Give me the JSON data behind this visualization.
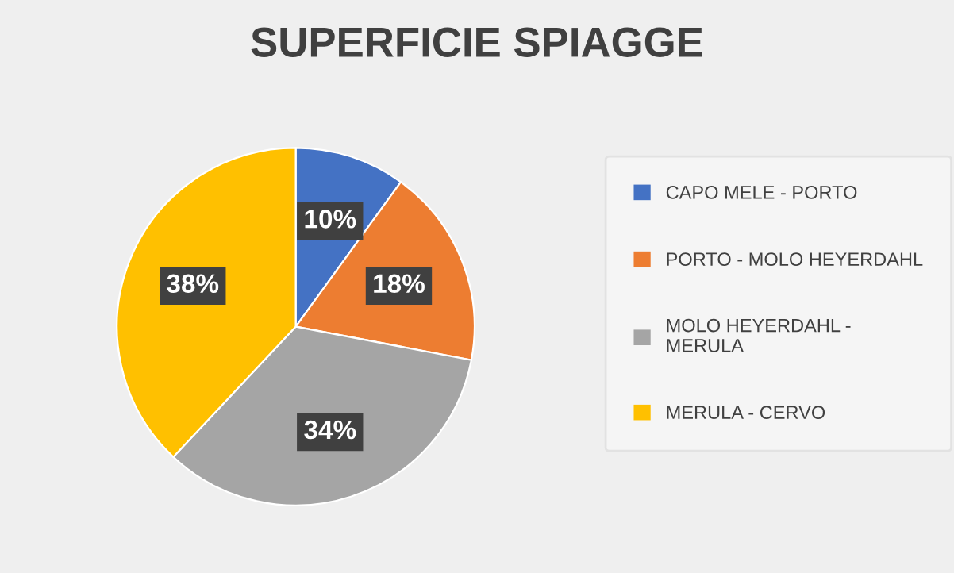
{
  "chart_data": {
    "type": "pie",
    "title": "SUPERFICIE SPIAGGE",
    "categories": [
      "CAPO MELE - PORTO",
      "PORTO - MOLO HEYERDAHL",
      "MOLO HEYERDAHL - MERULA",
      "MERULA - CERVO"
    ],
    "values": [
      10,
      18,
      34,
      38
    ],
    "colors": [
      "#4472c4",
      "#ed7d31",
      "#a5a5a5",
      "#ffc000"
    ],
    "value_labels": [
      "10%",
      "18%",
      "34%",
      "38%"
    ],
    "legend": "right"
  }
}
